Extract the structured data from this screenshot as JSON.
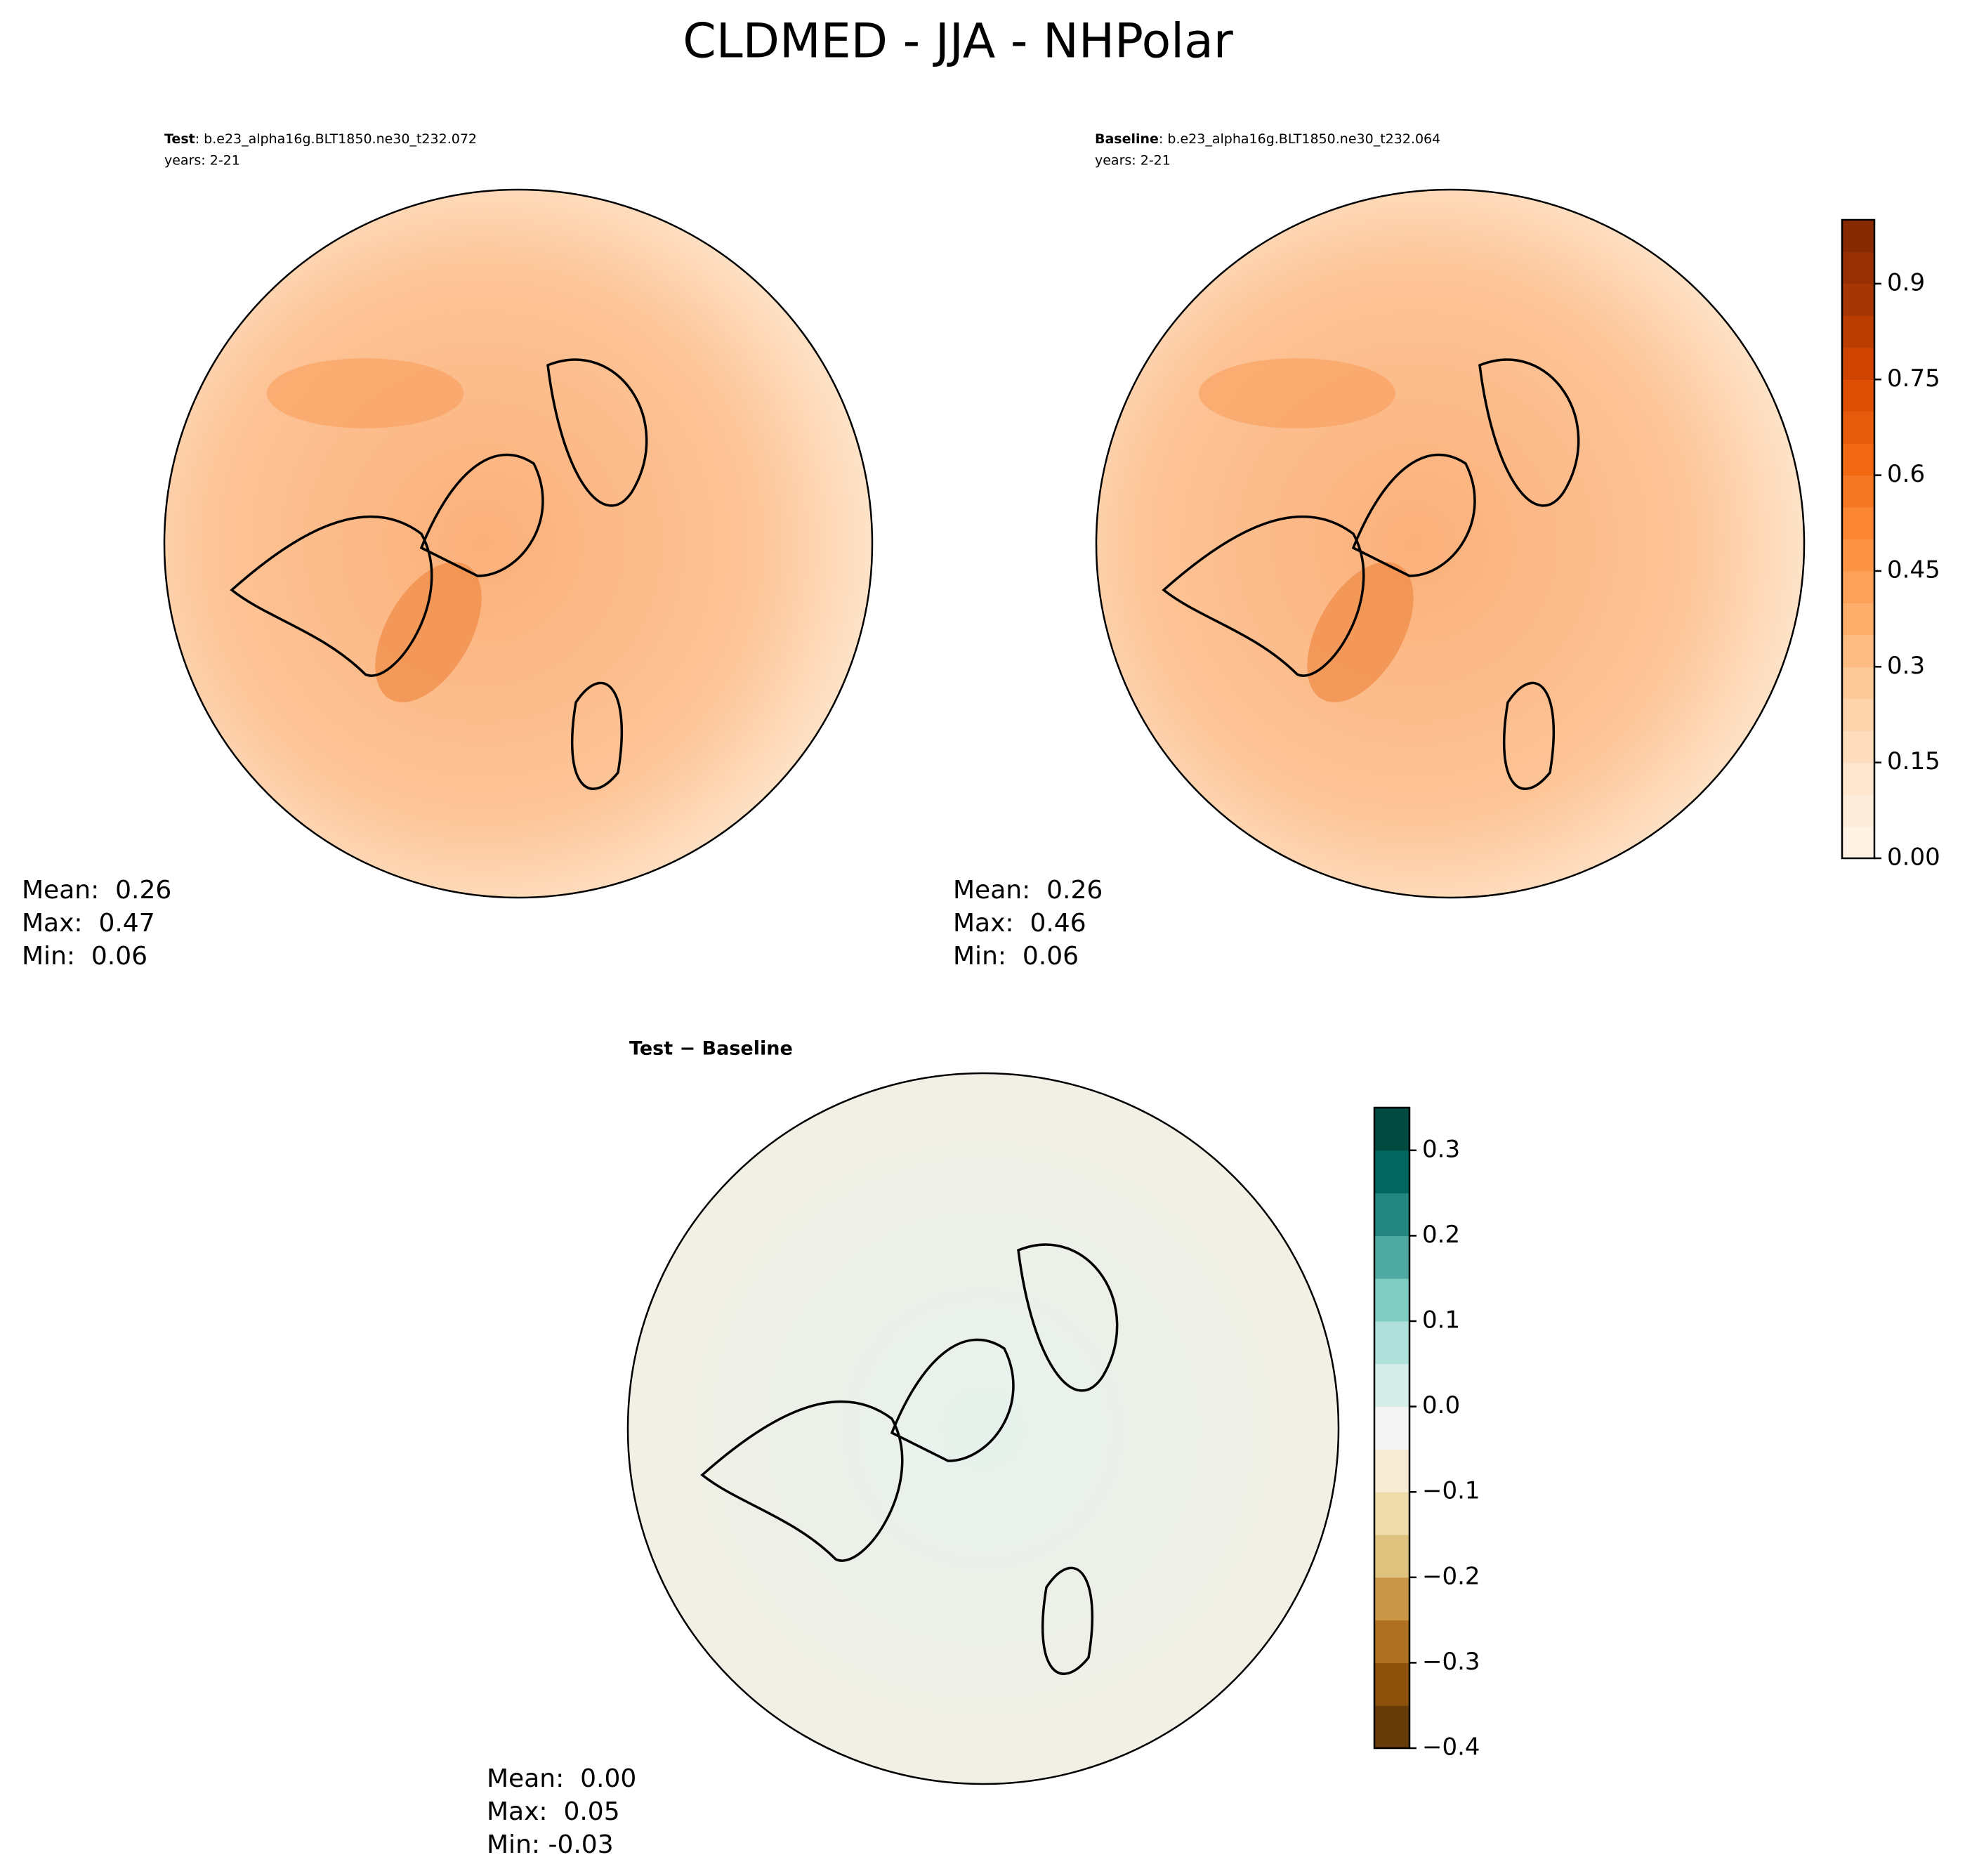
{
  "title": "CLDMED - JJA - NHPolar",
  "panels": [
    {
      "name": "Test",
      "case": ": b.e23_alpha16g.BLT1850.ne30_t232.072",
      "years": "years: 2-21",
      "stats": [
        "Mean:  0.26",
        "Max:  0.47",
        "Min:  0.06"
      ]
    },
    {
      "name": "Baseline",
      "case": ": b.e23_alpha16g.BLT1850.ne30_t232.064",
      "years": "years: 2-21",
      "stats": [
        "Mean:  0.26",
        "Max:  0.46",
        "Min:  0.06"
      ]
    },
    {
      "name": "Test − Baseline",
      "stats": [
        "Mean:  0.00",
        "Max:  0.05",
        "Min: -0.03"
      ]
    }
  ],
  "colorbars": [
    {
      "lim": [
        0,
        1
      ],
      "levels": 20,
      "colors": [
        "#fff5eb",
        "#fee6ce",
        "#fdd0a2",
        "#fdae6b",
        "#fd8d3c",
        "#f16913",
        "#d94801",
        "#a63603",
        "#7f2704"
      ],
      "ticks": [
        {
          "value": 0,
          "label": "0.00"
        },
        0.15,
        0.3,
        0.45,
        0.6,
        0.75,
        0.9
      ]
    },
    {
      "lim": [
        -0.4,
        0.35
      ],
      "levels": 15,
      "colors": [
        "#543005",
        "#8c510a",
        "#bf812d",
        "#dfc27d",
        "#f6e8c3",
        "#f5f5f5",
        "#c7eae5",
        "#80cdc1",
        "#35978f",
        "#01665e",
        "#003c30"
      ],
      "ticks": [
        {
          "value": -0.4,
          "label": "−0.4"
        },
        {
          "value": -0.3,
          "label": "−0.3"
        },
        {
          "value": -0.2,
          "label": "−0.2"
        },
        {
          "value": -0.1,
          "label": "−0.1"
        },
        {
          "value": 0,
          "label": "0.0"
        },
        0.1,
        0.2,
        0.3
      ]
    }
  ]
}
